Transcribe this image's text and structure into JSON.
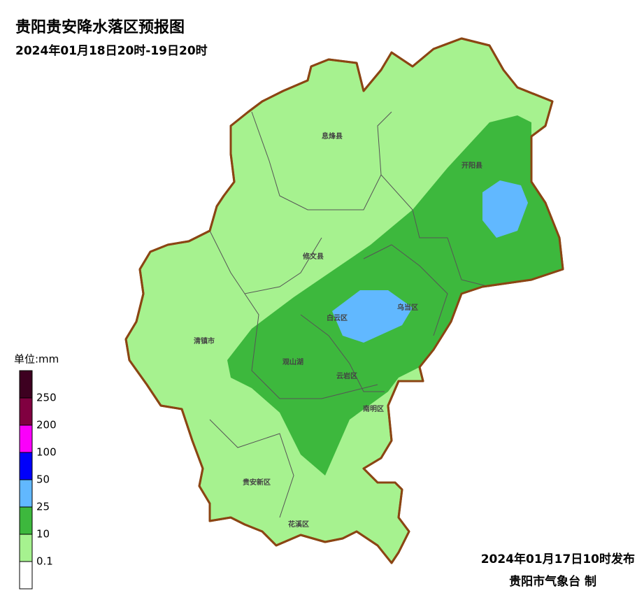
{
  "header": {
    "title": "贵阳贵安降水落区预报图",
    "subtitle": "2024年01月18日20时-19日20时"
  },
  "districts": [
    "息烽县",
    "开阳县",
    "修文县",
    "乌当区",
    "白云区",
    "清镇市",
    "观山湖",
    "云岩区",
    "南明区",
    "贵安新区",
    "花溪区"
  ],
  "legend": {
    "unit": "单位:mm",
    "colors": [
      "#3d0020",
      "#800040",
      "#fa00fa",
      "#0000fa",
      "#61b8ff",
      "#3db83d",
      "#a6f28f",
      "#ffffff"
    ],
    "labels": [
      "250",
      "200",
      "100",
      "50",
      "25",
      "10",
      "0.1"
    ]
  },
  "footer": {
    "issued": "2024年01月17日10时发布",
    "agency": "贵阳市气象台 制"
  }
}
